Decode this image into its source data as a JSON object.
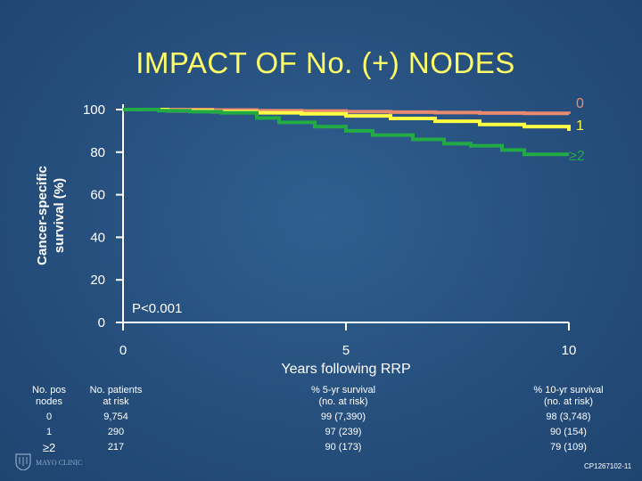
{
  "title": "IMPACT OF No. (+) NODES",
  "footer_code": "CP1267102-11",
  "logo_text": "MAYO CLINIC",
  "colors": {
    "background": "#264f7d",
    "title": "#ffff66",
    "axis": "#ffffff"
  },
  "chart_data": {
    "type": "line",
    "ylabel_lines": [
      "Cancer-specific",
      "survival (%)"
    ],
    "xlabel": "Years following RRP",
    "xlim": [
      0,
      10
    ],
    "ylim": [
      0,
      100
    ],
    "x_ticks": [
      0,
      5,
      10
    ],
    "y_ticks": [
      0,
      20,
      40,
      60,
      80,
      100
    ],
    "grid": false,
    "annotation": "P<0.001",
    "series": [
      {
        "name": "0",
        "color": "#e88a70",
        "points": [
          [
            0,
            100
          ],
          [
            1,
            100
          ],
          [
            2,
            99.8
          ],
          [
            3,
            99.5
          ],
          [
            4,
            99.3
          ],
          [
            5,
            99
          ],
          [
            6,
            98.8
          ],
          [
            7,
            98.6
          ],
          [
            8,
            98.4
          ],
          [
            9,
            98.2
          ],
          [
            10,
            98
          ]
        ]
      },
      {
        "name": "1",
        "color": "#ffff44",
        "points": [
          [
            0,
            100
          ],
          [
            1,
            99.5
          ],
          [
            2,
            99
          ],
          [
            3,
            98.5
          ],
          [
            4,
            98
          ],
          [
            5,
            97
          ],
          [
            6,
            95.8
          ],
          [
            7,
            94.5
          ],
          [
            8,
            93
          ],
          [
            9,
            92
          ],
          [
            10,
            90
          ]
        ]
      },
      {
        "name": "≥2",
        "color": "#22aa44",
        "points": [
          [
            0,
            100
          ],
          [
            0.5,
            100
          ],
          [
            0.8,
            99.5
          ],
          [
            1.5,
            99
          ],
          [
            2.2,
            98.5
          ],
          [
            3,
            96
          ],
          [
            3.5,
            94
          ],
          [
            4.3,
            92
          ],
          [
            5,
            90
          ],
          [
            5.6,
            88
          ],
          [
            6.5,
            86
          ],
          [
            7.2,
            84
          ],
          [
            7.8,
            83
          ],
          [
            8.5,
            81
          ],
          [
            9,
            79
          ],
          [
            10,
            79
          ]
        ]
      }
    ]
  },
  "risk_table": {
    "columns": [
      {
        "header": [
          "No. pos",
          "nodes"
        ],
        "rows": [
          "0",
          "1",
          "≥2"
        ]
      },
      {
        "header": [
          "No. patients",
          "at risk"
        ],
        "rows": [
          "9,754",
          "290",
          "217"
        ]
      },
      {
        "header": [
          "% 5-yr survival",
          "(no. at risk)"
        ],
        "rows": [
          "99 (7,390)",
          "97 (239)",
          "90 (173)"
        ]
      },
      {
        "header": [
          "% 10-yr survival",
          "(no. at risk)"
        ],
        "rows": [
          "98 (3,748)",
          "90 (154)",
          "79 (109)"
        ]
      }
    ]
  }
}
